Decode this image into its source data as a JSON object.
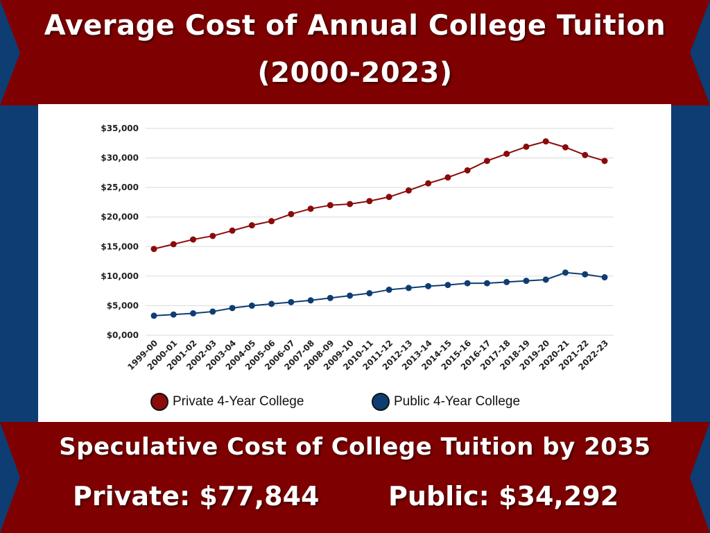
{
  "header": {
    "title_line1": "Average Cost of Annual College Tuition",
    "title_line2": "(2000-2023)"
  },
  "footer": {
    "speculative_heading": "Speculative Cost of College Tuition by 2035",
    "private_amount": "Private: $77,844",
    "public_amount": "Public: $34,292"
  },
  "colors": {
    "banner_red": "#7f0000",
    "background_blue": "#0d3d73",
    "private_series": "#8b0a0a",
    "public_series": "#0d3d73"
  },
  "chart_data": {
    "type": "line",
    "title": "",
    "xlabel": "",
    "ylabel": "",
    "ylim": [
      0,
      35000
    ],
    "y_ticks": [
      "$0,000",
      "$5,000",
      "$10,000",
      "$15,000",
      "$20,000",
      "$25,000",
      "$30,000",
      "$35,000"
    ],
    "grid": true,
    "legend_position": "bottom",
    "categories": [
      "1999-00",
      "2000-01",
      "2001-02",
      "2002-03",
      "2003-04",
      "2004-05",
      "2005-06",
      "2006-07",
      "2007-08",
      "2008-09",
      "2009-10",
      "2010-11",
      "2011-12",
      "2012-13",
      "2013-14",
      "2014-15",
      "2015-16",
      "2016-17",
      "2017-18",
      "2018-19",
      "2019-20",
      "2020-21",
      "2021-22",
      "2022-23"
    ],
    "series": [
      {
        "name": "Private 4-Year College",
        "color": "#8b0a0a",
        "values": [
          14600,
          15400,
          16200,
          16800,
          17700,
          18600,
          19300,
          20500,
          21400,
          22000,
          22200,
          22700,
          23400,
          24500,
          25700,
          26700,
          27900,
          29500,
          30700,
          31900,
          32800,
          31800,
          30500,
          29500
        ]
      },
      {
        "name": "Public 4-Year College",
        "color": "#0d3d73",
        "values": [
          3300,
          3500,
          3700,
          4000,
          4600,
          5000,
          5300,
          5600,
          5900,
          6300,
          6700,
          7100,
          7700,
          8000,
          8300,
          8500,
          8800,
          8800,
          9000,
          9200,
          9400,
          10600,
          10300,
          9800
        ]
      }
    ]
  }
}
